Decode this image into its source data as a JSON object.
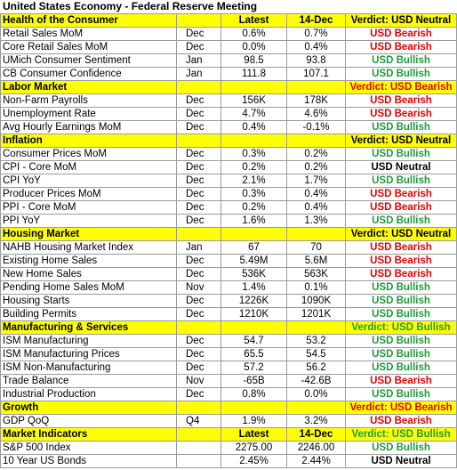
{
  "title": "United States Economy - Federal Reserve Meeting",
  "colors": {
    "header_bg": "#ffff00",
    "bearish": "#e60000",
    "bullish": "#1f9a3a",
    "neutral": "#000000"
  },
  "rows": [
    {
      "type": "section",
      "name": "Health of the Consumer",
      "period": "",
      "latest": "Latest",
      "prev": "14-Dec",
      "verdict": "Verdict: USD Neutral",
      "tone": "neut"
    },
    {
      "type": "data",
      "name": "Retail Sales MoM",
      "period": "Dec",
      "latest": "0.6%",
      "prev": "0.7%",
      "verdict": "USD Bearish",
      "tone": "bear"
    },
    {
      "type": "data",
      "name": "Core Retail Sales MoM",
      "period": "Dec",
      "latest": "0.0%",
      "prev": "0.4%",
      "verdict": "USD Bearish",
      "tone": "bear"
    },
    {
      "type": "data",
      "name": "UMich Consumer Sentiment",
      "period": "Jan",
      "latest": "98.5",
      "prev": "93.8",
      "verdict": "USD Bullish",
      "tone": "bull"
    },
    {
      "type": "data",
      "name": "CB Consumer Confidence",
      "period": "Jan",
      "latest": "111.8",
      "prev": "107.1",
      "verdict": "USD Bullish",
      "tone": "bull"
    },
    {
      "type": "section",
      "name": "Labor Market",
      "period": "",
      "latest": "",
      "prev": "",
      "verdict": "Verdict: USD Bearish",
      "tone": "bear"
    },
    {
      "type": "data",
      "name": "Non-Farm Payrolls",
      "period": "Dec",
      "latest": "156K",
      "prev": "178K",
      "verdict": "USD Bearish",
      "tone": "bear"
    },
    {
      "type": "data",
      "name": "Unemployment Rate",
      "period": "Dec",
      "latest": "4.7%",
      "prev": "4.6%",
      "verdict": "USD Bearish",
      "tone": "bear"
    },
    {
      "type": "data",
      "name": "Avg Hourly Earnings MoM",
      "period": "Dec",
      "latest": "0.4%",
      "prev": "-0.1%",
      "verdict": "USD Bullish",
      "tone": "bull"
    },
    {
      "type": "section",
      "name": "Inflation",
      "period": "",
      "latest": "",
      "prev": "",
      "verdict": "Verdict: USD Neutral",
      "tone": "neut"
    },
    {
      "type": "data",
      "name": "Consumer Prices MoM",
      "period": "Dec",
      "latest": "0.3%",
      "prev": "0.2%",
      "verdict": "USD Bullish",
      "tone": "bull"
    },
    {
      "type": "data",
      "name": "CPI - Core MoM",
      "period": "Dec",
      "latest": "0.2%",
      "prev": "0.2%",
      "verdict": "USD Neutral",
      "tone": "neut"
    },
    {
      "type": "data",
      "name": "CPI YoY",
      "period": "Dec",
      "latest": "2.1%",
      "prev": "1.7%",
      "verdict": "USD Bullish",
      "tone": "bull"
    },
    {
      "type": "data",
      "name": "Producer Prices MoM",
      "period": "Dec",
      "latest": "0.3%",
      "prev": "0.4%",
      "verdict": "USD Bearish",
      "tone": "bear"
    },
    {
      "type": "data",
      "name": "PPI - Core MoM",
      "period": "Dec",
      "latest": "0.2%",
      "prev": "0.4%",
      "verdict": "USD Bearish",
      "tone": "bear"
    },
    {
      "type": "data",
      "name": "PPI YoY",
      "period": "Dec",
      "latest": "1.6%",
      "prev": "1.3%",
      "verdict": "USD Bullish",
      "tone": "bull"
    },
    {
      "type": "section",
      "name": "Housing Market",
      "period": "",
      "latest": "",
      "prev": "",
      "verdict": "Verdict: USD Neutral",
      "tone": "neut"
    },
    {
      "type": "data",
      "name": "NAHB Housing Market Index",
      "period": "Jan",
      "latest": "67",
      "prev": "70",
      "verdict": "USD Bearish",
      "tone": "bear"
    },
    {
      "type": "data",
      "name": "Existing Home Sales",
      "period": "Dec",
      "latest": "5.49M",
      "prev": "5.6M",
      "verdict": "USD Bearish",
      "tone": "bear"
    },
    {
      "type": "data",
      "name": "New Home Sales",
      "period": "Dec",
      "latest": "536K",
      "prev": "563K",
      "verdict": "USD Bearish",
      "tone": "bear"
    },
    {
      "type": "data",
      "name": "Pending Home Sales MoM",
      "period": "Nov",
      "latest": "1.4%",
      "prev": "0.1%",
      "verdict": "USD Bullish",
      "tone": "bull"
    },
    {
      "type": "data",
      "name": "Housing Starts",
      "period": "Dec",
      "latest": "1226K",
      "prev": "1090K",
      "verdict": "USD Bullish",
      "tone": "bull"
    },
    {
      "type": "data",
      "name": "Building Permits",
      "period": "Dec",
      "latest": "1210K",
      "prev": "1201K",
      "verdict": "USD Bullish",
      "tone": "bull"
    },
    {
      "type": "section",
      "name": "Manufacturing & Services",
      "period": "",
      "latest": "",
      "prev": "",
      "verdict": "Verdict: USD Bullish",
      "tone": "bull"
    },
    {
      "type": "data",
      "name": "ISM Manufacturing",
      "period": "Dec",
      "latest": "54.7",
      "prev": "53.2",
      "verdict": "USD Bullish",
      "tone": "bull"
    },
    {
      "type": "data",
      "name": "ISM Manufacturing Prices",
      "period": "Dec",
      "latest": "65.5",
      "prev": "54.5",
      "verdict": "USD Bullish",
      "tone": "bull"
    },
    {
      "type": "data",
      "name": "ISM Non-Manufacturing",
      "period": "Dec",
      "latest": "57.2",
      "prev": "56.2",
      "verdict": "USD Bullish",
      "tone": "bull"
    },
    {
      "type": "data",
      "name": "Trade Balance",
      "period": "Nov",
      "latest": "-65B",
      "prev": "-42.6B",
      "verdict": "USD Bearish",
      "tone": "bear"
    },
    {
      "type": "data",
      "name": "Industrial Production",
      "period": "Dec",
      "latest": "0.8%",
      "prev": "0.0%",
      "verdict": "USD Bullish",
      "tone": "bull"
    },
    {
      "type": "section",
      "name": "Growth",
      "period": "",
      "latest": "",
      "prev": "",
      "verdict": "Verdict: USD Bearish",
      "tone": "bear"
    },
    {
      "type": "data",
      "name": "GDP QoQ",
      "period": "Q4",
      "latest": "1.9%",
      "prev": "3.2%",
      "verdict": "USD Bearish",
      "tone": "bear"
    },
    {
      "type": "section",
      "name": "Market Indicators",
      "period": "",
      "latest": "Latest",
      "prev": "14-Dec",
      "verdict": "Verdict: USD Bullish",
      "tone": "bull"
    },
    {
      "type": "data",
      "name": "S&P 500 Index",
      "period": "",
      "latest": "2275.00",
      "prev": "2246.00",
      "verdict": "USD Bullish",
      "tone": "bull"
    },
    {
      "type": "data",
      "name": "10 Year US Bonds",
      "period": "",
      "latest": "2.45%",
      "prev": "2.44%",
      "verdict": "USD Neutral",
      "tone": "neut"
    }
  ]
}
